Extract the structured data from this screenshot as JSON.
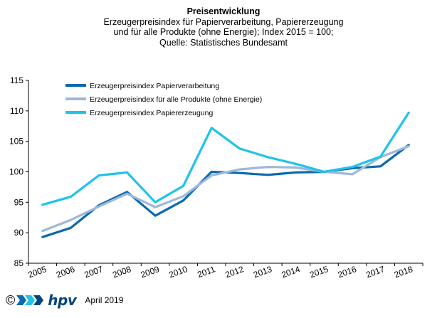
{
  "title": "Preisentwicklung",
  "subtitle_lines": [
    "Erzeugerpreisindex  für Papierverarbeitung,  Papiererzeugung",
    "und für alle Produkte (ohne Energie); Index 2015 = 100;",
    "Quelle: Statistisches Bundesamt"
  ],
  "chart_data": {
    "type": "line",
    "x": [
      "2005",
      "2006",
      "2007",
      "2008",
      "2009",
      "2010",
      "2011",
      "2012",
      "2013",
      "2014",
      "2015",
      "2016",
      "2017",
      "2018"
    ],
    "ylim": [
      85,
      115
    ],
    "yticks": [
      "85",
      "90",
      "95",
      "100",
      "105",
      "110",
      "115"
    ],
    "grid": false,
    "legend_position": "top-left",
    "series": [
      {
        "name": "Erzeugerpreisindex Papierverarbeitung",
        "color": "#0a6aad",
        "values": [
          89.3,
          90.8,
          94.5,
          96.7,
          92.8,
          95.3,
          100.0,
          99.8,
          99.5,
          99.9,
          100.0,
          100.6,
          100.9,
          104.4
        ]
      },
      {
        "name": "Erzeugerpreisindex für alle Produkte (ohne Energie)",
        "color": "#9db8db",
        "values": [
          90.3,
          92.1,
          94.3,
          96.4,
          94.2,
          96.0,
          99.4,
          100.4,
          100.8,
          100.7,
          100.0,
          99.6,
          102.4,
          104.2
        ]
      },
      {
        "name": "Erzeugerpreisindex Papiererzeugung",
        "color": "#1ec3ea",
        "values": [
          94.6,
          95.9,
          99.4,
          99.9,
          95.0,
          97.7,
          107.2,
          103.8,
          102.4,
          101.3,
          100.0,
          100.8,
          102.5,
          109.7
        ]
      }
    ]
  },
  "footer": {
    "copyright_symbol": "©",
    "logo_text": "hpv",
    "date": "April 2019",
    "logo_colors": [
      "#0a6aad",
      "#1ec3ea",
      "#00457c"
    ]
  }
}
